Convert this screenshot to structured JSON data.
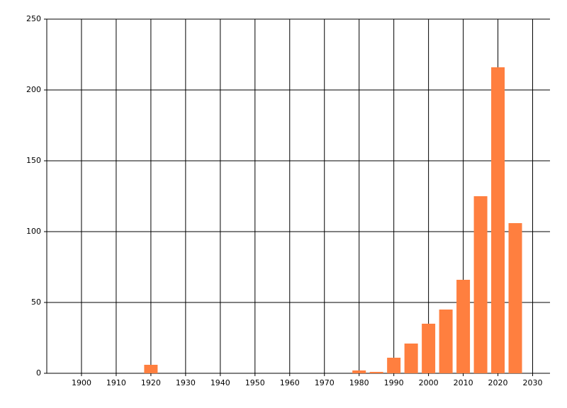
{
  "chart_data": {
    "type": "bar",
    "x": [
      1920,
      1980,
      1985,
      1990,
      1995,
      2000,
      2005,
      2010,
      2015,
      2020,
      2025
    ],
    "values": [
      6,
      2,
      1,
      11,
      21,
      35,
      45,
      66,
      125,
      216,
      106
    ],
    "color": "#ff7f3f",
    "xlim": [
      1890,
      2035
    ],
    "xticks": [
      1900,
      1910,
      1920,
      1930,
      1940,
      1950,
      1960,
      1970,
      1980,
      1990,
      2000,
      2010,
      2020,
      2030
    ],
    "ylim": [
      0,
      250
    ],
    "yticks": [
      0,
      50,
      100,
      150,
      200,
      250
    ],
    "grid": true
  }
}
